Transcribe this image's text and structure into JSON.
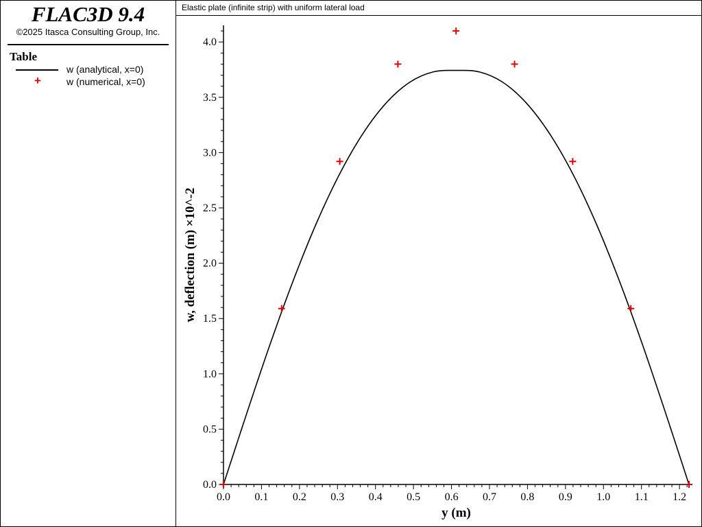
{
  "app": {
    "title": "FLAC3D 9.4",
    "copyright": "©2025 Itasca Consulting Group, Inc."
  },
  "legend": {
    "title": "Table",
    "items": [
      {
        "label": "w (analytical, x=0)",
        "marker": "line",
        "color": "#000000"
      },
      {
        "label": "w (numerical, x=0)",
        "marker": "plus",
        "color": "#e00000"
      }
    ]
  },
  "plot": {
    "title": "Elastic plate (infinite strip) with uniform lateral load"
  },
  "chart_data": {
    "type": "line",
    "title": "Elastic plate (infinite strip) with uniform lateral load",
    "xlabel": "y (m)",
    "ylabel": "w, deflection (m) ×10^-2",
    "xlim": [
      0,
      1.225
    ],
    "ylim": [
      0,
      4.15
    ],
    "x_ticks": [
      "0.0",
      "0.1",
      "0.2",
      "0.3",
      "0.4",
      "0.5",
      "0.6",
      "0.7",
      "0.8",
      "0.9",
      "1.0",
      "1.1",
      "1.2"
    ],
    "y_ticks": [
      "0.0",
      "0.5",
      "1.0",
      "1.5",
      "2.0",
      "2.5",
      "3.0",
      "3.5",
      "4.0"
    ],
    "grid": false,
    "series": [
      {
        "name": "w (analytical, x=0)",
        "style": "line",
        "color": "#000000",
        "x": [
          0.0,
          0.06125,
          0.1225,
          0.18375,
          0.245,
          0.30625,
          0.3675,
          0.42875,
          0.49,
          0.55125,
          0.6125,
          0.67375,
          0.735,
          0.79625,
          0.8575,
          0.91875,
          0.98,
          1.04125,
          1.1025,
          1.16375,
          1.225
        ],
        "y": [
          0.0,
          0.643,
          1.266,
          1.845,
          2.365,
          2.811,
          3.175,
          3.451,
          3.636,
          3.729,
          3.743,
          3.729,
          3.636,
          3.451,
          3.175,
          2.811,
          2.365,
          1.845,
          1.266,
          0.643,
          0.0
        ]
      },
      {
        "name": "w (numerical, x=0)",
        "style": "scatter",
        "marker": "plus",
        "color": "#e00000",
        "x": [
          0.0,
          0.153,
          0.306,
          0.459,
          0.612,
          0.766,
          0.919,
          1.072,
          1.225
        ],
        "y": [
          0.0,
          1.59,
          2.92,
          3.8,
          4.1,
          3.8,
          2.92,
          1.59,
          0.0
        ]
      }
    ]
  }
}
